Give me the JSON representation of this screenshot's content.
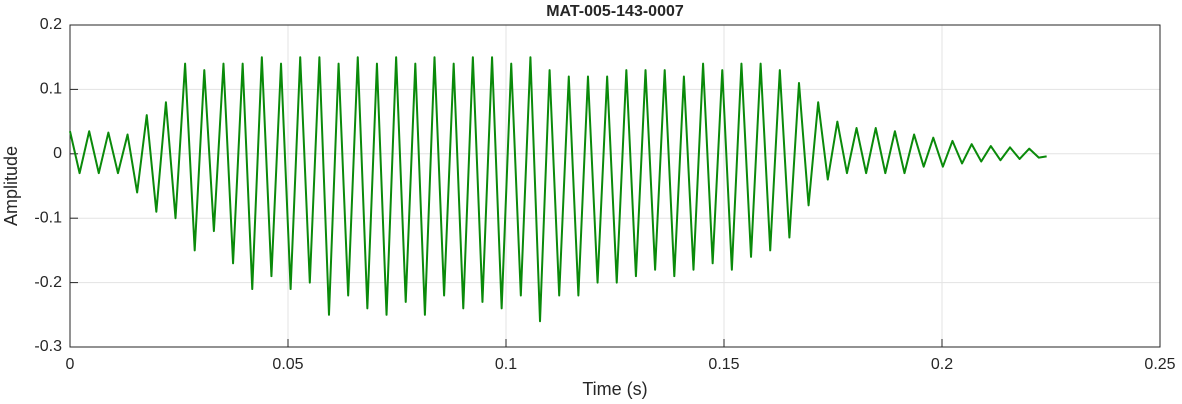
{
  "chart_data": {
    "type": "line",
    "title": "MAT-005-143-0007",
    "xlabel": "Time (s)",
    "ylabel": "Amplitude",
    "x": [
      0,
      0.0022,
      0.0044,
      0.0066,
      0.0088,
      0.011,
      0.0132,
      0.0154,
      0.0176,
      0.0198,
      0.022,
      0.0242,
      0.0264,
      0.0286,
      0.0308,
      0.033,
      0.0352,
      0.0374,
      0.0396,
      0.0418,
      0.044,
      0.0462,
      0.0484,
      0.0506,
      0.0528,
      0.055,
      0.0572,
      0.0594,
      0.0616,
      0.0638,
      0.066,
      0.0682,
      0.0704,
      0.0726,
      0.0748,
      0.077,
      0.0792,
      0.0814,
      0.0836,
      0.0858,
      0.088,
      0.0902,
      0.0924,
      0.0946,
      0.0968,
      0.099,
      0.1012,
      0.1034,
      0.1056,
      0.1078,
      0.11,
      0.1122,
      0.1144,
      0.1166,
      0.1188,
      0.121,
      0.1232,
      0.1254,
      0.1276,
      0.1298,
      0.132,
      0.1342,
      0.1364,
      0.1386,
      0.1408,
      0.143,
      0.1452,
      0.1474,
      0.1496,
      0.1518,
      0.154,
      0.1562,
      0.1584,
      0.1606,
      0.1628,
      0.165,
      0.1672,
      0.1694,
      0.1716,
      0.1738,
      0.176,
      0.1782,
      0.1804,
      0.1826,
      0.1848,
      0.187,
      0.1892,
      0.1914,
      0.1936,
      0.1958,
      0.198,
      0.2002,
      0.2024,
      0.2046,
      0.2068,
      0.209,
      0.2112,
      0.2134,
      0.2156,
      0.2178,
      0.22,
      0.2222,
      0.224
    ],
    "series": [
      {
        "name": "Amplitude",
        "color": "#0a8a0a",
        "values": [
          0.035,
          -0.03,
          0.035,
          -0.03,
          0.033,
          -0.03,
          0.03,
          -0.06,
          0.06,
          -0.09,
          0.08,
          -0.1,
          0.14,
          -0.15,
          0.13,
          -0.12,
          0.14,
          -0.17,
          0.14,
          -0.21,
          0.15,
          -0.19,
          0.14,
          -0.21,
          0.15,
          -0.2,
          0.15,
          -0.25,
          0.14,
          -0.22,
          0.15,
          -0.24,
          0.14,
          -0.25,
          0.15,
          -0.23,
          0.14,
          -0.25,
          0.15,
          -0.22,
          0.14,
          -0.24,
          0.15,
          -0.23,
          0.15,
          -0.24,
          0.14,
          -0.22,
          0.15,
          -0.26,
          0.13,
          -0.22,
          0.12,
          -0.22,
          0.12,
          -0.2,
          0.12,
          -0.2,
          0.13,
          -0.19,
          0.13,
          -0.18,
          0.13,
          -0.19,
          0.12,
          -0.18,
          0.14,
          -0.17,
          0.13,
          -0.18,
          0.14,
          -0.16,
          0.14,
          -0.15,
          0.13,
          -0.13,
          0.11,
          -0.08,
          0.08,
          -0.04,
          0.05,
          -0.03,
          0.04,
          -0.03,
          0.04,
          -0.03,
          0.035,
          -0.03,
          0.03,
          -0.02,
          0.025,
          -0.02,
          0.02,
          -0.015,
          0.015,
          -0.012,
          0.012,
          -0.01,
          0.01,
          -0.008,
          0.008,
          -0.006,
          -0.004
        ]
      }
    ],
    "xlim": [
      0,
      0.25
    ],
    "xticks": [
      0,
      0.05,
      0.1,
      0.15,
      0.2,
      0.25
    ],
    "ylim": [
      -0.3,
      0.2
    ],
    "yticks": [
      -0.3,
      -0.2,
      -0.1,
      0,
      0.1,
      0.2
    ],
    "grid": true
  }
}
